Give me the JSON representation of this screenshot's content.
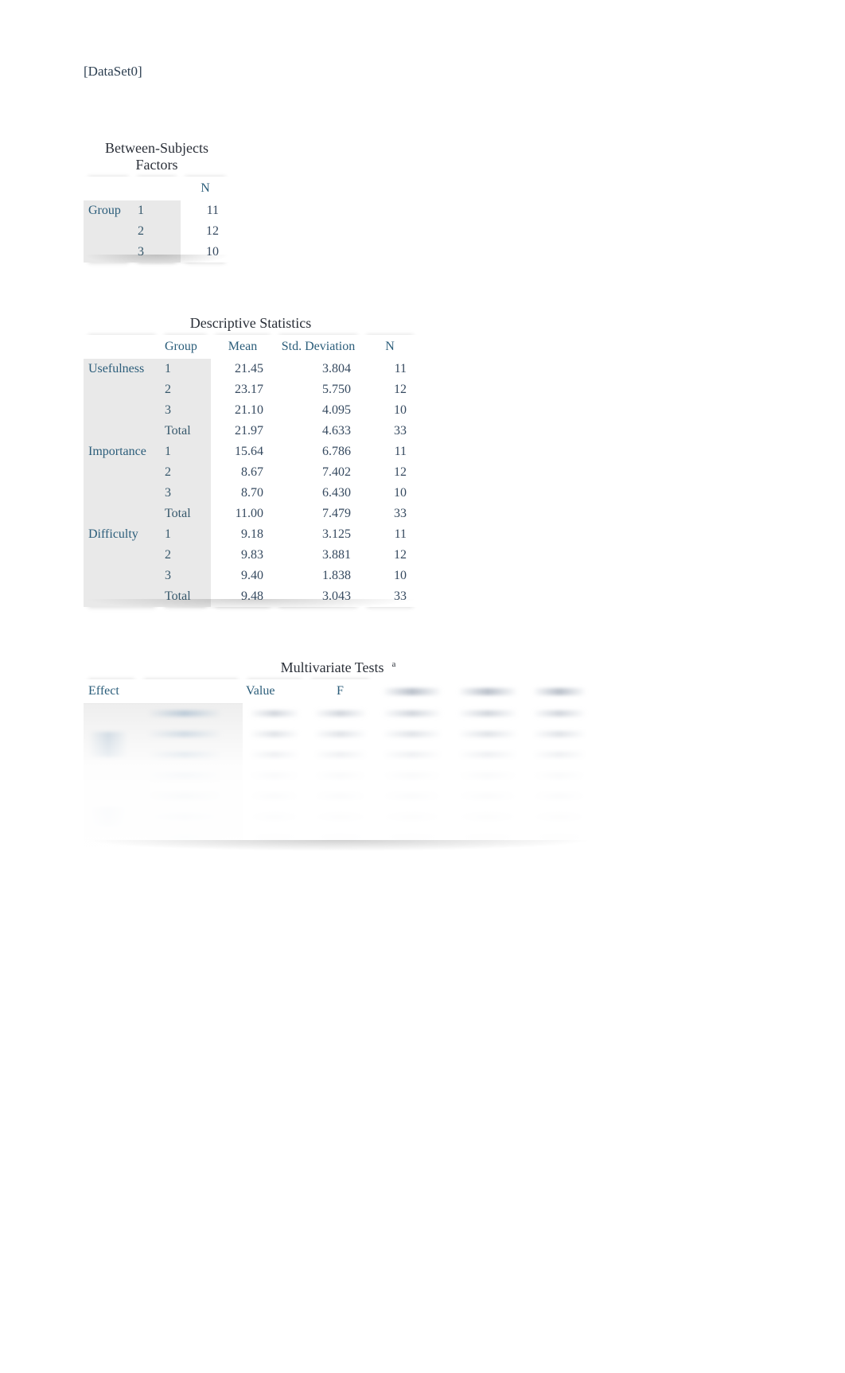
{
  "dataset_label": "[DataSet0]",
  "factors": {
    "title": "Between-Subjects Factors",
    "columns": [
      "",
      "",
      "N"
    ],
    "rowhead": "Group",
    "rows": [
      {
        "level": "1",
        "n": "11"
      },
      {
        "level": "2",
        "n": "12"
      },
      {
        "level": "3",
        "n": "10"
      }
    ]
  },
  "descriptives": {
    "title": "Descriptive Statistics",
    "columns": [
      "",
      "Group",
      "Mean",
      "Std. Deviation",
      "N"
    ],
    "blocks": [
      {
        "var": "Usefulness",
        "rows": [
          {
            "group": "1",
            "mean": "21.45",
            "sd": "3.804",
            "n": "11"
          },
          {
            "group": "2",
            "mean": "23.17",
            "sd": "5.750",
            "n": "12"
          },
          {
            "group": "3",
            "mean": "21.10",
            "sd": "4.095",
            "n": "10"
          },
          {
            "group": "Total",
            "mean": "21.97",
            "sd": "4.633",
            "n": "33"
          }
        ]
      },
      {
        "var": "Importance",
        "rows": [
          {
            "group": "1",
            "mean": "15.64",
            "sd": "6.786",
            "n": "11"
          },
          {
            "group": "2",
            "mean": "8.67",
            "sd": "7.402",
            "n": "12"
          },
          {
            "group": "3",
            "mean": "8.70",
            "sd": "6.430",
            "n": "10"
          },
          {
            "group": "Total",
            "mean": "11.00",
            "sd": "7.479",
            "n": "33"
          }
        ]
      },
      {
        "var": "Difficulty",
        "rows": [
          {
            "group": "1",
            "mean": "9.18",
            "sd": "3.125",
            "n": "11"
          },
          {
            "group": "2",
            "mean": "9.83",
            "sd": "3.881",
            "n": "12"
          },
          {
            "group": "3",
            "mean": "9.40",
            "sd": "1.838",
            "n": "10"
          },
          {
            "group": "Total",
            "mean": "9.48",
            "sd": "3.043",
            "n": "33"
          }
        ]
      }
    ]
  },
  "multivariate": {
    "title": "Multivariate Tests",
    "superscript": "a",
    "columns_visible": [
      "Effect",
      "",
      "Value",
      "F",
      "",
      "",
      ""
    ],
    "body_obscured": true,
    "n_body_rows": 7
  },
  "style": {
    "page_bg": "#ffffff",
    "text_color": "#253345",
    "header_color": "#2b5d7a",
    "rowhead_bg": "#e9e9e9",
    "font_family": "Georgia, 'Times New Roman', serif"
  }
}
